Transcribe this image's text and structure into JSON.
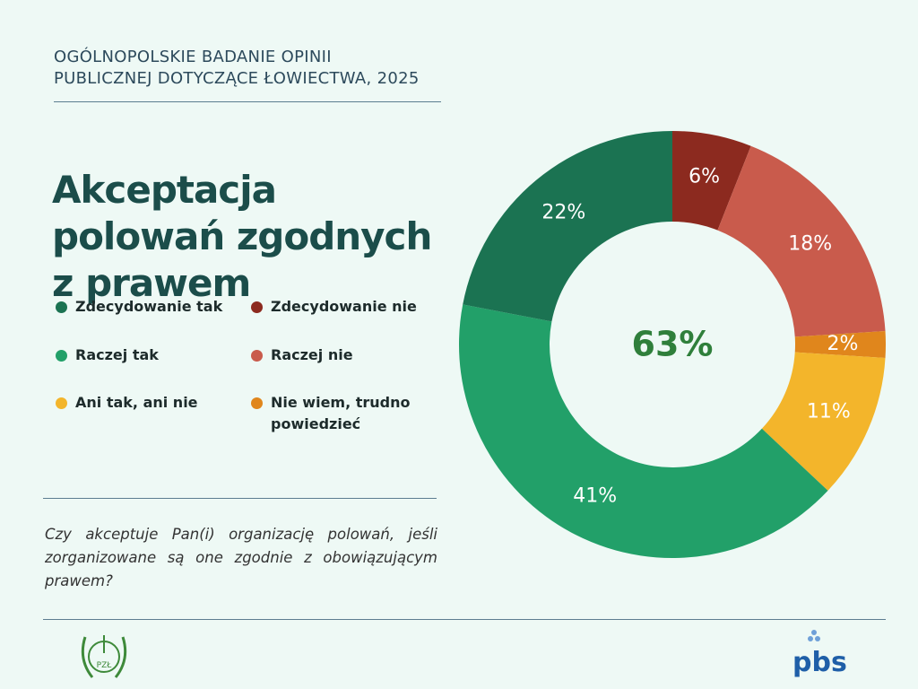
{
  "header_lines": [
    "OGÓLNOPOLSKIE BADANIE OPINII",
    "PUBLICZNEJ DOTYCZĄCE ŁOWIECTWA, 2025"
  ],
  "chart_data": {
    "type": "pie",
    "donut": true,
    "title": "Akceptacja polowań zgodnych z prawem",
    "categories": [
      "Zdecydowanie nie",
      "Raczej nie",
      "Nie wiem, trudno powiedzieć",
      "Ani tak, ani nie",
      "Raczej tak",
      "Zdecydowanie tak"
    ],
    "values": [
      6,
      18,
      2,
      11,
      41,
      22
    ],
    "value_labels": [
      "6%",
      "18%",
      "2%",
      "11%",
      "41%",
      "22%"
    ],
    "colors": [
      "#8c2a1f",
      "#c95b4c",
      "#e0861c",
      "#f3b52b",
      "#22a069",
      "#1b7352"
    ],
    "center_label": "63%"
  },
  "question": "Czy akceptuje Pan(i) organizację polowań, jeśli zorganizowane są one zgodnie z obowiązującym prawem?",
  "logos": {
    "left": "PZŁ",
    "right": "pbs"
  }
}
